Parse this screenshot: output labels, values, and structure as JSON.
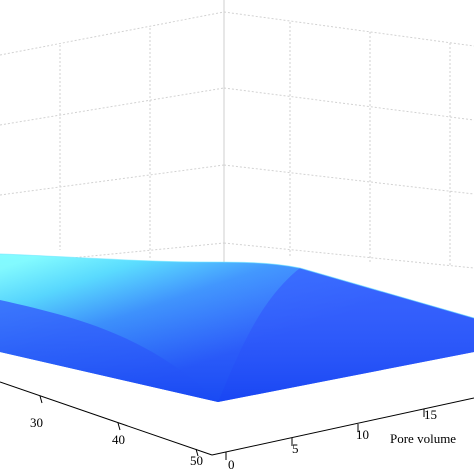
{
  "chart_data": {
    "type": "surface",
    "title": "",
    "xlabel": "Pore volume",
    "ylabel": "",
    "zlabel": "",
    "x_ticks": [
      "0",
      "5",
      "10",
      "15"
    ],
    "y_ticks": [
      "30",
      "40",
      "50"
    ],
    "grid": true,
    "colormap": [
      "#1e5bff",
      "#2f9dff",
      "#45d9ff",
      "#72fbff"
    ]
  }
}
